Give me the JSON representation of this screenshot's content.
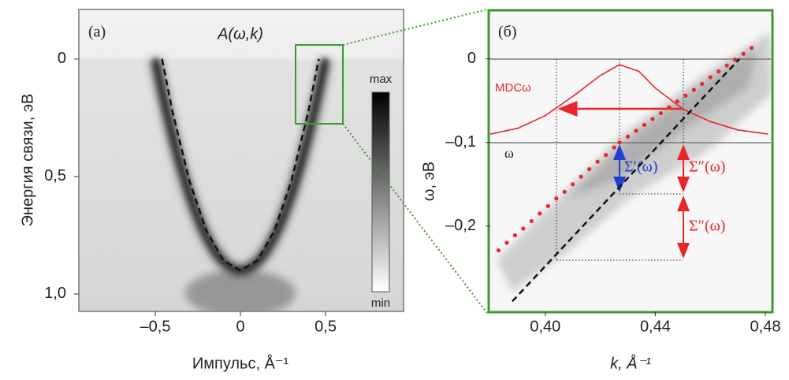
{
  "chart_data": [
    {
      "type": "line",
      "title": "A(ω,k)",
      "xlabel": "Импульс, Å⁻¹",
      "ylabel": "Энергия связи, эВ",
      "xlim": [
        -0.949,
        0.958
      ],
      "ylim": [
        -0.211,
        1.074
      ],
      "y_inverted": true,
      "xticks": [
        {
          "value": -0.5,
          "label": "–0,5"
        },
        0,
        {
          "value": 0.5,
          "label": "0,5"
        }
      ],
      "yticks": [
        0,
        {
          "value": 0.5,
          "label": "0,5"
        },
        {
          "value": 1.0,
          "label": "1,0"
        }
      ],
      "annotations": [
        "(a)",
        "max",
        "min"
      ],
      "series": [
        {
          "style": "dashed",
          "color": "#111111",
          "x": [
            -0.46,
            -0.4,
            -0.3,
            -0.2,
            -0.1,
            0,
            0.1,
            0.2,
            0.3,
            0.4,
            0.46
          ],
          "values": [
            0,
            0.22,
            0.517,
            0.73,
            0.857,
            0.9,
            0.857,
            0.73,
            0.517,
            0.22,
            0
          ]
        }
      ]
    },
    {
      "type": "scatter",
      "xlabel": "k, Å⁻¹",
      "ylabel": "ω, эВ",
      "xlim": [
        0.38,
        0.482
      ],
      "ylim": [
        -0.302,
        0.059
      ],
      "xticks": [
        {
          "value": 0.4,
          "label": "0,40"
        },
        {
          "value": 0.44,
          "label": "0,44"
        },
        {
          "value": 0.48,
          "label": "0,48"
        }
      ],
      "yticks": [
        0,
        {
          "value": -0.1,
          "label": "–0,1"
        },
        {
          "value": -0.2,
          "label": "–0,2"
        }
      ],
      "annotations": [
        "(б)",
        "MDCω",
        "ω",
        "Σ′(ω)",
        "Σ″(ω)",
        "Σ″(ω)"
      ],
      "series": [
        {
          "style": "line",
          "color": "#e8262a",
          "x": [
            0.38,
            0.39,
            0.4,
            0.41,
            0.42,
            0.427,
            0.434,
            0.44,
            0.45,
            0.46,
            0.47,
            0.481
          ],
          "values": [
            -0.09,
            -0.083,
            -0.068,
            -0.045,
            -0.02,
            -0.007,
            -0.015,
            -0.035,
            -0.06,
            -0.075,
            -0.085,
            -0.09
          ]
        },
        {
          "style": "dashed",
          "color": "#111111",
          "x": [
            0.388,
            0.4706
          ],
          "values": [
            -0.29,
            0
          ]
        },
        {
          "style": "dots",
          "color": "#e8262a",
          "x": [
            0.383,
            0.386,
            0.389,
            0.392,
            0.395,
            0.398,
            0.401,
            0.404,
            0.407,
            0.41,
            0.413,
            0.416,
            0.419,
            0.422,
            0.425,
            0.427,
            0.43,
            0.433,
            0.436,
            0.439,
            0.442,
            0.445,
            0.448,
            0.451,
            0.454,
            0.457,
            0.46,
            0.463,
            0.466,
            0.469,
            0.472,
            0.475
          ],
          "values": [
            -0.229,
            -0.22,
            -0.211,
            -0.203,
            -0.194,
            -0.185,
            -0.176,
            -0.167,
            -0.159,
            -0.15,
            -0.141,
            -0.132,
            -0.123,
            -0.115,
            -0.106,
            -0.1,
            -0.093,
            -0.086,
            -0.079,
            -0.072,
            -0.065,
            -0.058,
            -0.051,
            -0.044,
            -0.037,
            -0.03,
            -0.022,
            -0.015,
            -0.008,
            -0.001,
            0.006,
            0.013
          ]
        }
      ]
    }
  ]
}
